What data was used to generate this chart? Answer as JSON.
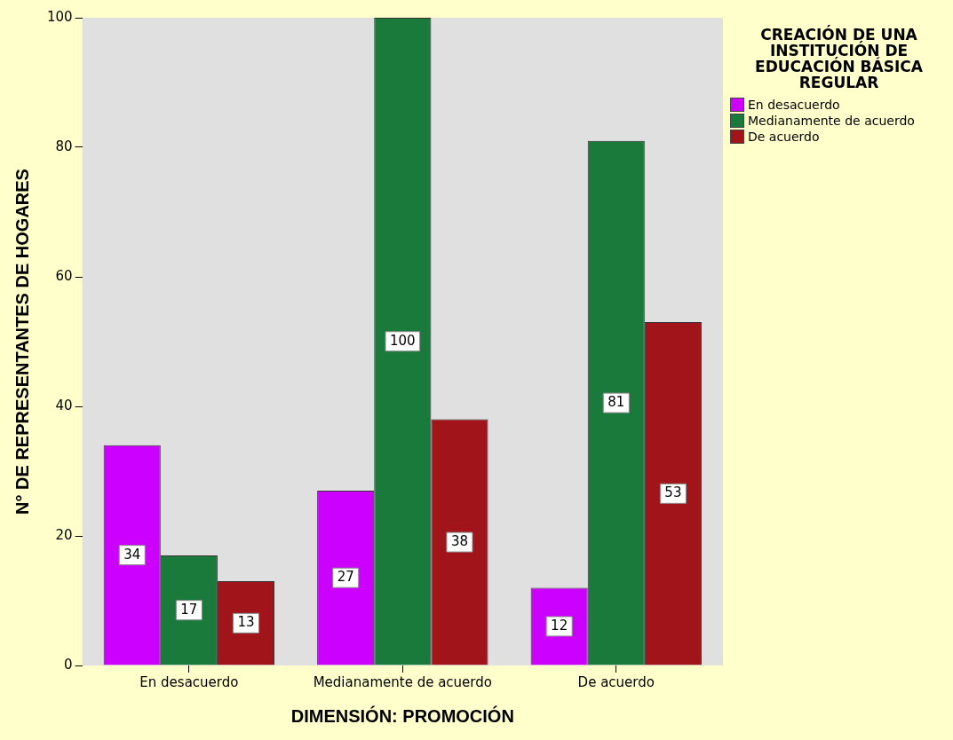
{
  "chart_data": {
    "type": "bar",
    "xlabel": "DIMENSIÓN: PROMOCIÓN",
    "ylabel": "N° DE REPRESENTANTES DE HOGARES",
    "legend_title": "CREACIÓN DE UNA INSTITUCIÓN DE EDUCACIÓN BÁSICA REGULAR",
    "categories": [
      "En desacuerdo",
      "Medianamente de acuerdo",
      "De acuerdo"
    ],
    "series": [
      {
        "name": "En desacuerdo",
        "color": "#cc00ff",
        "values": [
          34,
          27,
          12
        ]
      },
      {
        "name": "Medianamente de acuerdo",
        "color": "#1a7a3c",
        "values": [
          17,
          100,
          81
        ]
      },
      {
        "name": "De acuerdo",
        "color": "#a0141a",
        "values": [
          13,
          38,
          53
        ]
      }
    ],
    "ylim": [
      0,
      100
    ],
    "yticks": [
      0,
      20,
      40,
      60,
      80,
      100
    ],
    "data_labels": true,
    "legend": "right",
    "grid": false
  }
}
